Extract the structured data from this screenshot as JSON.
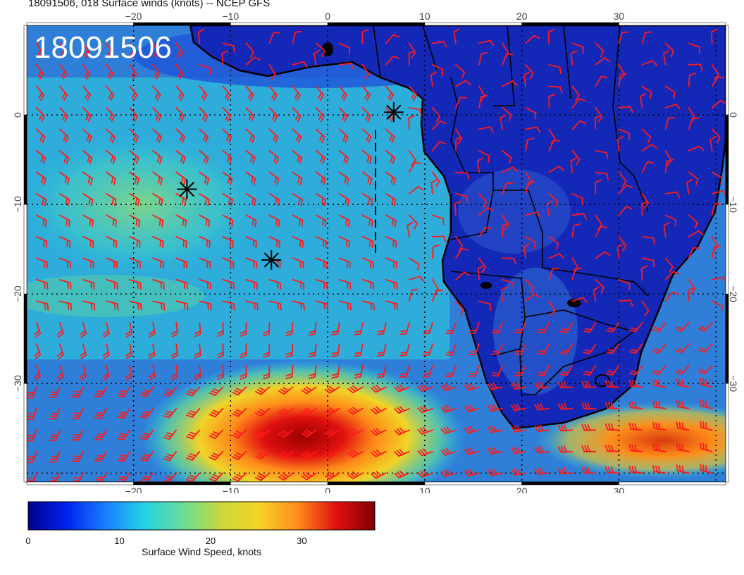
{
  "title": "18091506, 018 Surface winds (knots) -- NCEP GFS",
  "stamp": "18091506",
  "map": {
    "lon_range": [
      -31,
      41
    ],
    "lat_range": [
      -41,
      10
    ],
    "lon_ticks": [
      "−20",
      "−10",
      "0",
      "10",
      "20",
      "30"
    ],
    "lon_tick_values": [
      -20,
      -10,
      0,
      10,
      20,
      30
    ],
    "lat_ticks": [
      "0",
      "−10",
      "−20",
      "−30"
    ],
    "lat_tick_values": [
      0,
      -10,
      -20,
      -30
    ],
    "colors": {
      "barb": "#ff1a1a",
      "coast": "#000000",
      "grid": "#000000"
    }
  },
  "markers": [
    {
      "label": "storm-marker-1",
      "lon": -14.5,
      "lat": -8.3
    },
    {
      "label": "storm-marker-2",
      "lon": -5.8,
      "lat": -16.2
    },
    {
      "label": "storm-marker-3",
      "lon": 6.8,
      "lat": 0.3
    }
  ],
  "colorbar": {
    "label": "Surface Wind Speed, knots",
    "ticks": [
      "0",
      "10",
      "20",
      "30"
    ],
    "tick_values": [
      0,
      10,
      20,
      30
    ],
    "range": [
      0,
      38
    ],
    "colors": [
      "#00008b",
      "#0022ee",
      "#1a7dff",
      "#22d2e6",
      "#66dd99",
      "#c8d83a",
      "#f6d327",
      "#ff8c1a",
      "#e01010",
      "#800000"
    ]
  }
}
